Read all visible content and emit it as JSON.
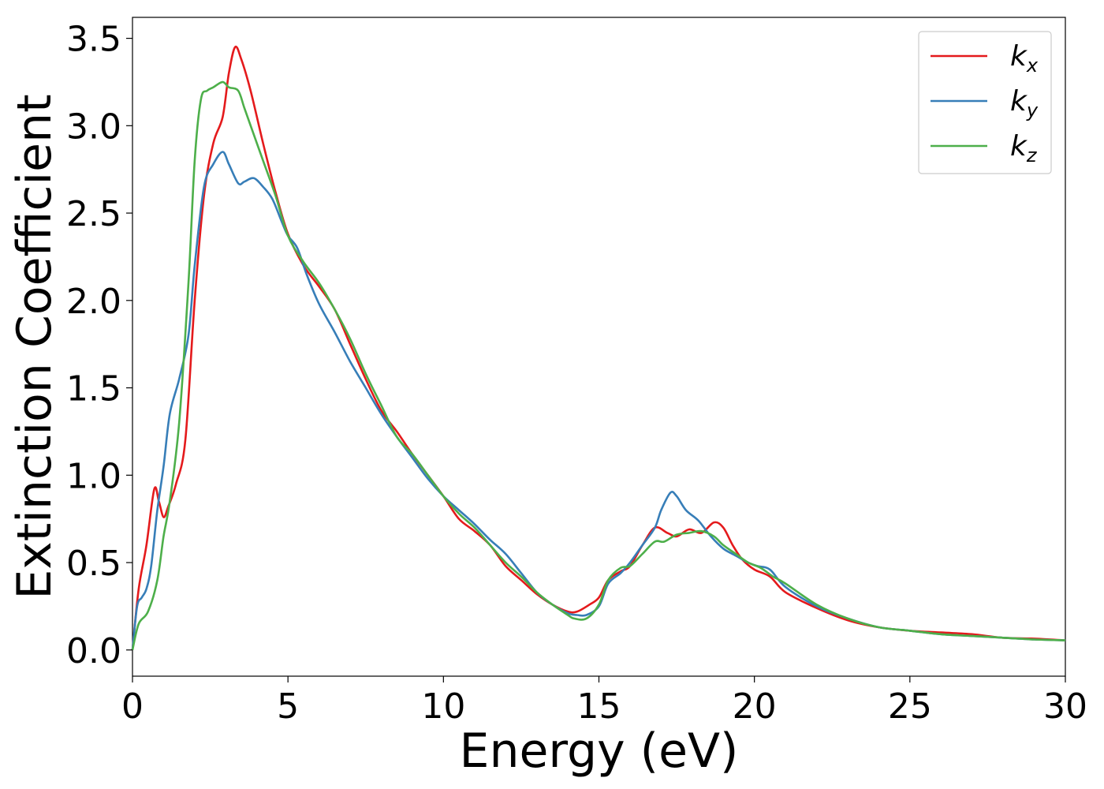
{
  "chart_data": {
    "type": "line",
    "xlabel": "Energy (eV)",
    "ylabel": "Extinction Coefficient",
    "xlim": [
      0,
      30
    ],
    "ylim": [
      -0.15,
      3.62
    ],
    "xticks": [
      "0",
      "5",
      "10",
      "15",
      "20",
      "25",
      "30"
    ],
    "xtick_values": [
      0,
      5,
      10,
      15,
      20,
      25,
      30
    ],
    "yticks": [
      "0.0",
      "0.5",
      "1.0",
      "1.5",
      "2.0",
      "2.5",
      "3.0",
      "3.5"
    ],
    "ytick_values": [
      0,
      0.5,
      1.0,
      1.5,
      2.0,
      2.5,
      3.0,
      3.5
    ],
    "grid": false,
    "legend_position": "top-right",
    "series": [
      {
        "name": "k_x",
        "label_main": "k",
        "label_sub": "x",
        "color": "#e41a1c",
        "x": [
          0,
          0.2,
          0.45,
          0.7,
          0.85,
          1.0,
          1.15,
          1.4,
          1.7,
          2.0,
          2.3,
          2.6,
          2.9,
          3.1,
          3.3,
          3.5,
          3.8,
          4.2,
          4.6,
          5.0,
          5.5,
          6.0,
          6.5,
          7.0,
          7.5,
          8.0,
          8.5,
          9.0,
          9.5,
          10.0,
          10.5,
          11.0,
          11.5,
          12.0,
          12.5,
          13.0,
          13.5,
          14.0,
          14.3,
          14.7,
          15.0,
          15.3,
          15.7,
          16.0,
          16.4,
          16.8,
          17.2,
          17.5,
          17.9,
          18.3,
          18.7,
          19.0,
          19.3,
          19.6,
          20.0,
          20.5,
          21.0,
          22.0,
          23.0,
          24.0,
          25.0,
          26.0,
          27.0,
          28.0,
          29.0,
          30.0
        ],
        "y": [
          0.0,
          0.35,
          0.6,
          0.92,
          0.85,
          0.76,
          0.82,
          0.95,
          1.2,
          2.0,
          2.6,
          2.9,
          3.05,
          3.3,
          3.45,
          3.38,
          3.2,
          2.9,
          2.62,
          2.38,
          2.2,
          2.08,
          1.95,
          1.75,
          1.55,
          1.37,
          1.25,
          1.12,
          1.0,
          0.88,
          0.75,
          0.68,
          0.6,
          0.48,
          0.4,
          0.32,
          0.26,
          0.22,
          0.22,
          0.26,
          0.3,
          0.4,
          0.45,
          0.48,
          0.6,
          0.7,
          0.67,
          0.65,
          0.69,
          0.67,
          0.73,
          0.7,
          0.6,
          0.52,
          0.46,
          0.42,
          0.33,
          0.24,
          0.17,
          0.13,
          0.11,
          0.1,
          0.09,
          0.07,
          0.065,
          0.055
        ]
      },
      {
        "name": "k_y",
        "label_main": "k",
        "label_sub": "y",
        "color": "#377eb8",
        "x": [
          0,
          0.15,
          0.3,
          0.45,
          0.6,
          0.8,
          1.0,
          1.2,
          1.5,
          1.8,
          2.0,
          2.3,
          2.6,
          2.9,
          3.1,
          3.4,
          3.6,
          3.9,
          4.2,
          4.5,
          4.8,
          5.0,
          5.3,
          5.6,
          6.0,
          6.5,
          7.0,
          7.5,
          8.0,
          8.5,
          9.0,
          9.5,
          10.0,
          10.5,
          11.0,
          11.5,
          12.0,
          12.5,
          13.0,
          13.5,
          14.0,
          14.3,
          14.6,
          15.0,
          15.3,
          15.7,
          16.0,
          16.4,
          16.8,
          17.0,
          17.3,
          17.5,
          17.8,
          18.2,
          18.6,
          19.0,
          19.4,
          19.8,
          20.1,
          20.5,
          21.0,
          22.0,
          23.0,
          24.0,
          25.0,
          26.0,
          27.0,
          28.0,
          29.0,
          30.0
        ],
        "y": [
          0.0,
          0.25,
          0.3,
          0.35,
          0.48,
          0.8,
          1.05,
          1.35,
          1.55,
          1.8,
          2.2,
          2.65,
          2.78,
          2.85,
          2.78,
          2.67,
          2.68,
          2.7,
          2.65,
          2.58,
          2.45,
          2.37,
          2.3,
          2.15,
          1.98,
          1.82,
          1.65,
          1.5,
          1.35,
          1.22,
          1.1,
          0.98,
          0.88,
          0.8,
          0.72,
          0.63,
          0.55,
          0.44,
          0.33,
          0.26,
          0.21,
          0.2,
          0.2,
          0.25,
          0.38,
          0.44,
          0.5,
          0.6,
          0.7,
          0.8,
          0.9,
          0.88,
          0.8,
          0.74,
          0.65,
          0.58,
          0.54,
          0.5,
          0.48,
          0.46,
          0.36,
          0.25,
          0.18,
          0.13,
          0.11,
          0.09,
          0.08,
          0.07,
          0.06,
          0.055
        ]
      },
      {
        "name": "k_z",
        "label_main": "k",
        "label_sub": "z",
        "color": "#4daf4a",
        "x": [
          0,
          0.2,
          0.5,
          0.8,
          1.0,
          1.2,
          1.5,
          1.8,
          2.0,
          2.2,
          2.4,
          2.6,
          2.9,
          3.1,
          3.4,
          3.6,
          3.9,
          4.2,
          4.6,
          5.0,
          5.5,
          6.0,
          6.5,
          7.0,
          7.5,
          8.0,
          8.5,
          9.0,
          9.5,
          10.0,
          10.5,
          11.0,
          11.5,
          12.0,
          12.5,
          13.0,
          13.5,
          14.0,
          14.2,
          14.6,
          15.0,
          15.3,
          15.7,
          16.0,
          16.4,
          16.8,
          17.1,
          17.5,
          17.9,
          18.3,
          18.7,
          19.0,
          19.4,
          19.8,
          20.2,
          20.6,
          21.0,
          22.0,
          23.0,
          24.0,
          25.0,
          26.0,
          27.0,
          28.0,
          29.0,
          30.0
        ],
        "y": [
          0.0,
          0.15,
          0.22,
          0.4,
          0.65,
          0.85,
          1.3,
          2.1,
          2.8,
          3.15,
          3.2,
          3.22,
          3.25,
          3.22,
          3.2,
          3.1,
          2.95,
          2.8,
          2.6,
          2.37,
          2.22,
          2.1,
          1.95,
          1.78,
          1.58,
          1.4,
          1.22,
          1.12,
          1.0,
          0.88,
          0.78,
          0.7,
          0.6,
          0.5,
          0.42,
          0.33,
          0.26,
          0.2,
          0.18,
          0.18,
          0.26,
          0.4,
          0.47,
          0.48,
          0.55,
          0.62,
          0.62,
          0.66,
          0.67,
          0.68,
          0.65,
          0.6,
          0.55,
          0.5,
          0.47,
          0.42,
          0.38,
          0.26,
          0.18,
          0.13,
          0.11,
          0.09,
          0.08,
          0.07,
          0.06,
          0.055
        ]
      }
    ]
  }
}
